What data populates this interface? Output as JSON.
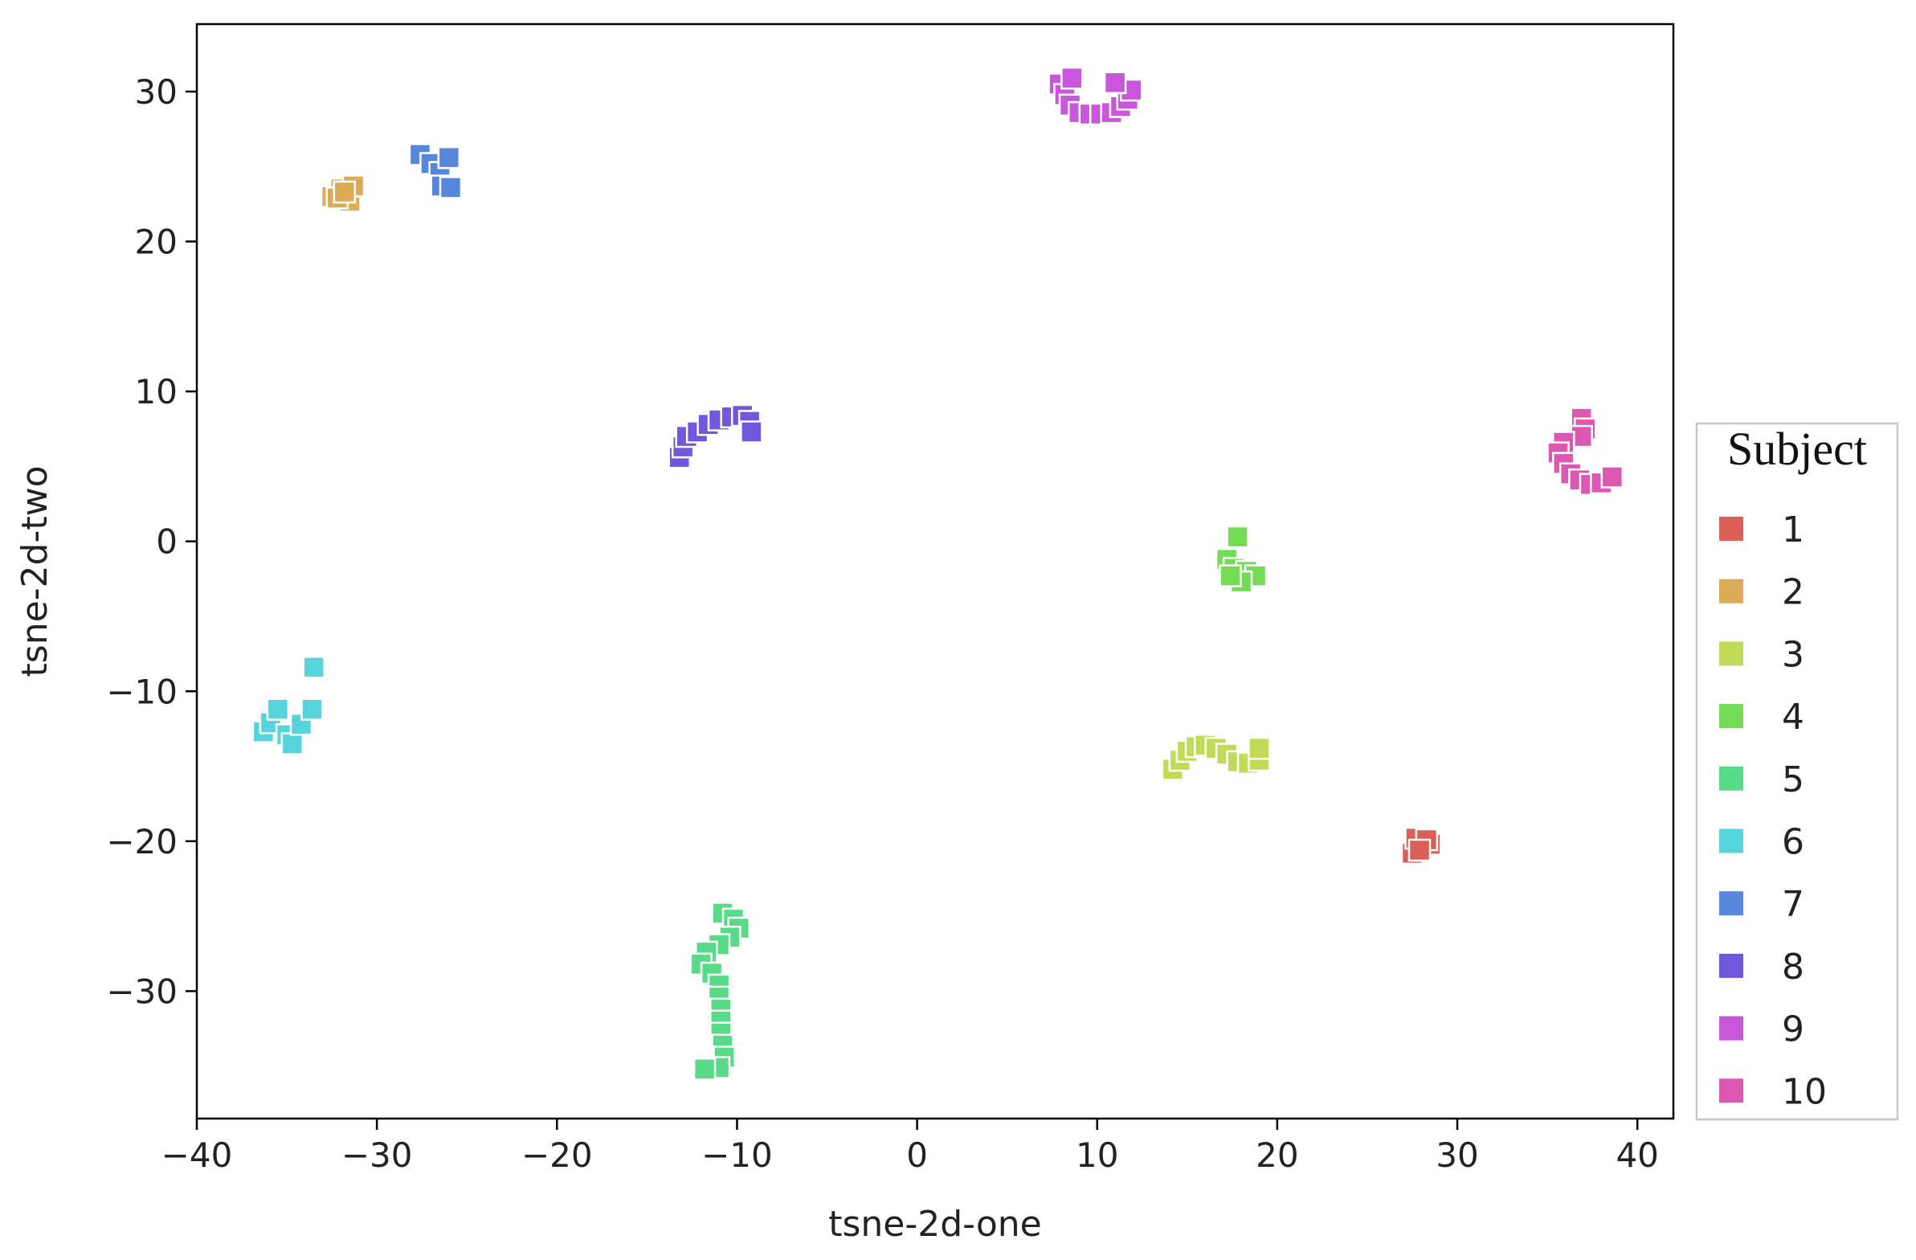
{
  "chart_data": {
    "type": "scatter",
    "title": "",
    "xlabel": "tsne-2d-one",
    "ylabel": "tsne-2d-two",
    "xlim": [
      -40,
      42
    ],
    "ylim": [
      -38.5,
      34.5
    ],
    "xticks": [
      -40,
      -30,
      -20,
      -10,
      0,
      10,
      20,
      30,
      40
    ],
    "xtick_labels": [
      "−40",
      "−30",
      "−20",
      "−10",
      "0",
      "10",
      "20",
      "30",
      "40"
    ],
    "yticks": [
      30,
      20,
      10,
      0,
      -10,
      -20,
      -30
    ],
    "ytick_labels": [
      "30",
      "20",
      "10",
      "0",
      "−10",
      "−20",
      "−30"
    ],
    "marker": "square",
    "grid": false,
    "legend": {
      "title": "Subject",
      "placement": "outside-right"
    },
    "series": [
      {
        "name": "1",
        "color": "#db5f57",
        "points": [
          [
            27.5,
            -20.8
          ],
          [
            28,
            -20.5
          ],
          [
            28.5,
            -20.2
          ],
          [
            27.7,
            -19.8
          ],
          [
            28.3,
            -19.9
          ],
          [
            27.9,
            -20.6
          ]
        ]
      },
      {
        "name": "2",
        "color": "#dbab57",
        "points": [
          [
            -32.5,
            23.0
          ],
          [
            -32,
            23.5
          ],
          [
            -31.5,
            22.7
          ],
          [
            -31.3,
            23.7
          ],
          [
            -32.2,
            22.9
          ],
          [
            -31.8,
            23.3
          ]
        ]
      },
      {
        "name": "3",
        "color": "#c0db57",
        "points": [
          [
            14.2,
            -15.2
          ],
          [
            14.6,
            -14.6
          ],
          [
            15.0,
            -14.0
          ],
          [
            15.5,
            -13.7
          ],
          [
            16.0,
            -13.6
          ],
          [
            16.6,
            -13.8
          ],
          [
            17.2,
            -14.2
          ],
          [
            17.8,
            -14.7
          ],
          [
            18.4,
            -14.8
          ],
          [
            19.0,
            -14.6
          ],
          [
            19.0,
            -13.8
          ]
        ]
      },
      {
        "name": "4",
        "color": "#74db57",
        "points": [
          [
            17.8,
            0.3
          ],
          [
            17.2,
            -1.2
          ],
          [
            17.6,
            -1.8
          ],
          [
            18.3,
            -2.0
          ],
          [
            18.8,
            -2.3
          ],
          [
            18.0,
            -2.7
          ],
          [
            17.4,
            -2.3
          ]
        ]
      },
      {
        "name": "5",
        "color": "#57db86",
        "points": [
          [
            -10.8,
            -24.8
          ],
          [
            -10.2,
            -25.2
          ],
          [
            -9.9,
            -25.8
          ],
          [
            -10.4,
            -26.4
          ],
          [
            -11.0,
            -26.9
          ],
          [
            -11.7,
            -27.4
          ],
          [
            -12.0,
            -28.2
          ],
          [
            -11.4,
            -28.8
          ],
          [
            -11.0,
            -29.6
          ],
          [
            -11.0,
            -30.4
          ],
          [
            -10.9,
            -31.2
          ],
          [
            -10.9,
            -32.0
          ],
          [
            -10.9,
            -32.8
          ],
          [
            -10.8,
            -33.6
          ],
          [
            -10.7,
            -34.4
          ],
          [
            -11.0,
            -35.1
          ],
          [
            -11.8,
            -35.2
          ]
        ]
      },
      {
        "name": "6",
        "color": "#57d3db",
        "points": [
          [
            -33.5,
            -8.4
          ],
          [
            -36.3,
            -12.7
          ],
          [
            -35.9,
            -12.1
          ],
          [
            -35.5,
            -11.2
          ],
          [
            -35.0,
            -12.9
          ],
          [
            -34.7,
            -13.5
          ],
          [
            -34.2,
            -12.2
          ],
          [
            -33.6,
            -11.2
          ]
        ]
      },
      {
        "name": "7",
        "color": "#5787db",
        "points": [
          [
            -27.6,
            25.8
          ],
          [
            -27.0,
            25.2
          ],
          [
            -26.5,
            24.6
          ],
          [
            -26.0,
            25.6
          ],
          [
            -26.4,
            23.7
          ],
          [
            -25.9,
            23.6
          ]
        ]
      },
      {
        "name": "8",
        "color": "#7157db",
        "points": [
          [
            -13.2,
            5.6
          ],
          [
            -13.0,
            6.3
          ],
          [
            -12.8,
            7.0
          ],
          [
            -12.2,
            7.3
          ],
          [
            -11.6,
            7.8
          ],
          [
            -11.0,
            8.1
          ],
          [
            -10.3,
            8.3
          ],
          [
            -9.7,
            8.4
          ],
          [
            -9.3,
            8.0
          ],
          [
            -9.2,
            7.3
          ]
        ]
      },
      {
        "name": "9",
        "color": "#c957db",
        "points": [
          [
            7.9,
            30.5
          ],
          [
            8.2,
            29.8
          ],
          [
            8.5,
            29.1
          ],
          [
            9.0,
            28.6
          ],
          [
            9.6,
            28.5
          ],
          [
            10.2,
            28.5
          ],
          [
            10.8,
            28.6
          ],
          [
            11.3,
            29.0
          ],
          [
            11.7,
            29.5
          ],
          [
            11.9,
            30.1
          ],
          [
            11.0,
            30.6
          ],
          [
            8.6,
            30.9
          ]
        ]
      },
      {
        "name": "10",
        "color": "#db57b2",
        "points": [
          [
            36.9,
            8.2
          ],
          [
            37.1,
            7.5
          ],
          [
            36.9,
            7.0
          ],
          [
            35.9,
            6.6
          ],
          [
            35.6,
            5.9
          ],
          [
            35.9,
            5.2
          ],
          [
            36.3,
            4.5
          ],
          [
            36.8,
            4.1
          ],
          [
            37.4,
            3.8
          ],
          [
            38.0,
            3.9
          ],
          [
            38.6,
            4.3
          ]
        ]
      }
    ]
  }
}
